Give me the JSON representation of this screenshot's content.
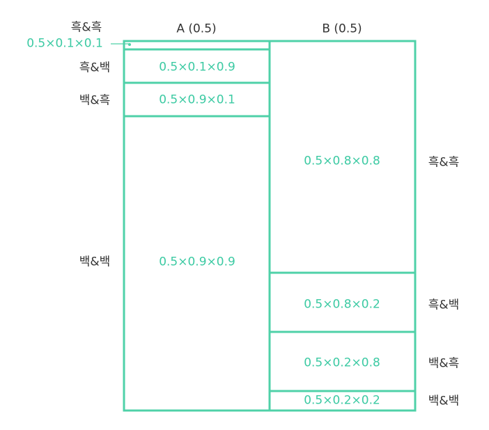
{
  "colors": {
    "box_stroke": "#4fd1a8",
    "cell_text": "#3ccaa3",
    "label_text": "#333333"
  },
  "headers": {
    "col_a": "A (0.5)",
    "col_b": "B (0.5)"
  },
  "column_a": {
    "cells": [
      {
        "value": "0.5×0.1×0.1",
        "label": "흑&흑",
        "fraction": 0.01
      },
      {
        "value": "0.5×0.1×0.9",
        "label": "흑&백",
        "fraction": 0.09
      },
      {
        "value": "0.5×0.9×0.1",
        "label": "백&흑",
        "fraction": 0.09
      },
      {
        "value": "0.5×0.9×0.9",
        "label": "백&백",
        "fraction": 0.81
      }
    ]
  },
  "column_b": {
    "cells": [
      {
        "value": "0.5×0.8×0.8",
        "label": "흑&흑",
        "fraction": 0.64
      },
      {
        "value": "0.5×0.8×0.2",
        "label": "흑&백",
        "fraction": 0.16
      },
      {
        "value": "0.5×0.2×0.8",
        "label": "백&흑",
        "fraction": 0.16
      },
      {
        "value": "0.5×0.2×0.2",
        "label": "백&백",
        "fraction": 0.04
      }
    ]
  }
}
